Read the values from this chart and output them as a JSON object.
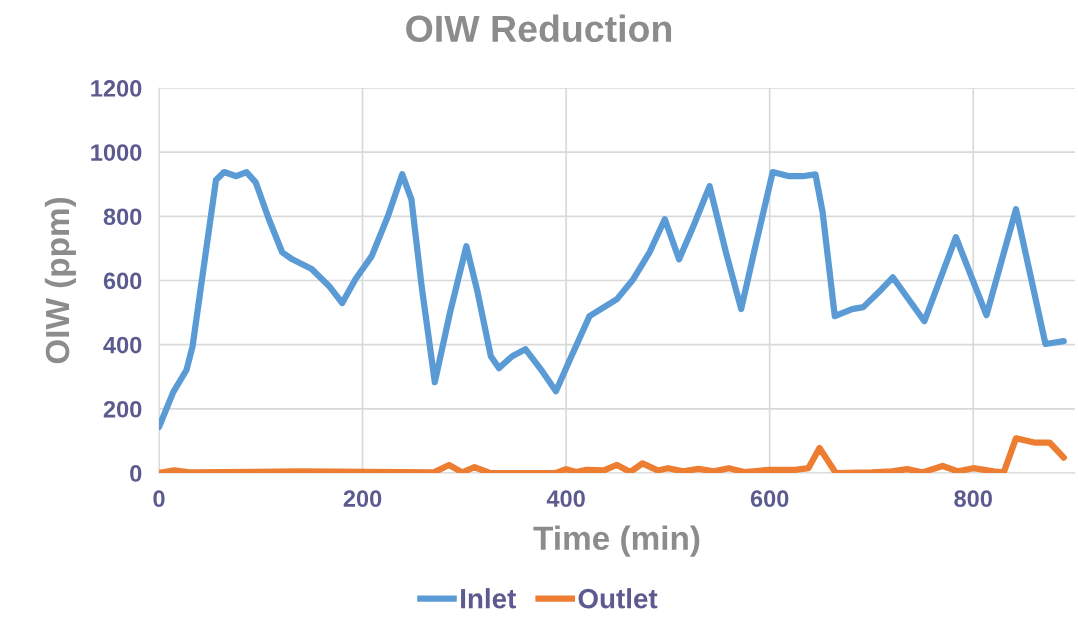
{
  "chart_data": {
    "type": "line",
    "title": "OIW Reduction",
    "xlabel": "Time (min)",
    "ylabel": "OIW (ppm)",
    "xlim": [
      0,
      900
    ],
    "xticks": [
      0,
      200,
      400,
      600,
      800
    ],
    "ylim": [
      0,
      1200
    ],
    "yticks": [
      0,
      200,
      400,
      600,
      800,
      1000,
      1200
    ],
    "grid": true,
    "legend": "bottom",
    "line_style": "solid",
    "marker": "none",
    "series": [
      {
        "name": "Inlet",
        "color": "#5b9bd5",
        "x": [
          0,
          14,
          27,
          33,
          45,
          56,
          64,
          76,
          86,
          95,
          108,
          121,
          131,
          150,
          167,
          180,
          193,
          209,
          225,
          239,
          248,
          258,
          271,
          286,
          302,
          313,
          326,
          334,
          347,
          360,
          375,
          390,
          404,
          423,
          450,
          466,
          482,
          497,
          511,
          525,
          541,
          557,
          572,
          586,
          603,
          619,
          632,
          645,
          652,
          664,
          681,
          692,
          710,
          721,
          752,
          783,
          813,
          842,
          871,
          889
        ],
        "values": [
          143,
          252,
          321,
          395,
          666,
          913,
          938,
          925,
          938,
          906,
          791,
          688,
          666,
          636,
          583,
          530,
          604,
          676,
          801,
          931,
          853,
          583,
          283,
          501,
          707,
          564,
          364,
          327,
          364,
          386,
          324,
          255,
          355,
          489,
          542,
          604,
          688,
          791,
          666,
          769,
          894,
          688,
          511,
          707,
          938,
          925,
          925,
          931,
          813,
          489,
          511,
          517,
          573,
          610,
          473,
          735,
          492,
          822,
          402,
          411
        ]
      },
      {
        "name": "Outlet",
        "color": "#ed7d31",
        "x": [
          0,
          15,
          30,
          140,
          270,
          285,
          298,
          310,
          325,
          390,
          400,
          410,
          420,
          437,
          450,
          463,
          475,
          490,
          500,
          515,
          530,
          545,
          560,
          575,
          600,
          625,
          638,
          649,
          665,
          700,
          720,
          735,
          750,
          770,
          785,
          800,
          820,
          830,
          842,
          860,
          875,
          889
        ],
        "values": [
          0,
          8,
          2,
          5,
          2,
          25,
          2,
          18,
          0,
          0,
          12,
          3,
          10,
          8,
          25,
          3,
          30,
          8,
          15,
          5,
          13,
          5,
          15,
          3,
          10,
          10,
          15,
          78,
          0,
          2,
          5,
          12,
          2,
          22,
          5,
          15,
          5,
          2,
          108,
          95,
          95,
          48
        ]
      }
    ]
  }
}
